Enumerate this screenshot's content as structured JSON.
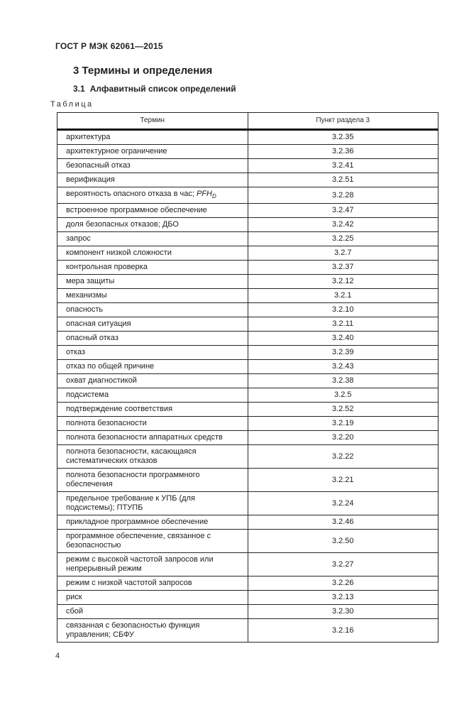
{
  "page": {
    "doc_code": "ГОСТ Р МЭК 62061—2015",
    "section_heading": "3 Термины и определения",
    "subsection_number": "3.1",
    "subsection_title": "Алфавитный список определений",
    "table_label": "Таблица",
    "page_number": "4"
  },
  "table": {
    "headers": {
      "term": "Термин",
      "clause": "Пункт раздела 3"
    },
    "rows": [
      {
        "term": [
          {
            "t": "архитектура"
          }
        ],
        "clause": "3.2.35"
      },
      {
        "term": [
          {
            "t": "архитектурное ограничение"
          }
        ],
        "clause": "3.2.36"
      },
      {
        "term": [
          {
            "t": "безопасный отказ"
          }
        ],
        "clause": "3.2.41"
      },
      {
        "term": [
          {
            "t": "верификация"
          }
        ],
        "clause": "3.2.51"
      },
      {
        "term": [
          {
            "t": "вероятность опасного отказа в час; "
          },
          {
            "t": "PFH",
            "s": "it"
          },
          {
            "t": "D",
            "s": "sub"
          }
        ],
        "clause": "3.2.28"
      },
      {
        "term": [
          {
            "t": "встроенное программное обеспечение"
          }
        ],
        "clause": "3.2.47"
      },
      {
        "term": [
          {
            "t": "доля безопасных отказов; ДБО"
          }
        ],
        "clause": "3.2.42"
      },
      {
        "term": [
          {
            "t": "запрос"
          }
        ],
        "clause": "3.2.25"
      },
      {
        "term": [
          {
            "t": "компонент низкой сложности"
          }
        ],
        "clause": "3.2.7"
      },
      {
        "term": [
          {
            "t": "контрольная проверка"
          }
        ],
        "clause": "3.2.37"
      },
      {
        "term": [
          {
            "t": "мера защиты"
          }
        ],
        "clause": "3.2.12"
      },
      {
        "term": [
          {
            "t": "механизмы"
          }
        ],
        "clause": "3.2.1"
      },
      {
        "term": [
          {
            "t": "опасность"
          }
        ],
        "clause": "3.2.10"
      },
      {
        "term": [
          {
            "t": "опасная ситуация"
          }
        ],
        "clause": "3.2.11"
      },
      {
        "term": [
          {
            "t": "опасный отказ"
          }
        ],
        "clause": "3.2.40"
      },
      {
        "term": [
          {
            "t": "отказ"
          }
        ],
        "clause": "3.2.39"
      },
      {
        "term": [
          {
            "t": "отказ по общей причине"
          }
        ],
        "clause": "3.2.43"
      },
      {
        "term": [
          {
            "t": "охват диагностикой"
          }
        ],
        "clause": "3.2.38"
      },
      {
        "term": [
          {
            "t": "подсистема"
          }
        ],
        "clause": "3.2.5"
      },
      {
        "term": [
          {
            "t": "подтверждение соответствия"
          }
        ],
        "clause": "3.2.52"
      },
      {
        "term": [
          {
            "t": "полнота безопасности"
          }
        ],
        "clause": "3.2.19"
      },
      {
        "term": [
          {
            "t": "полнота безопасности аппаратных средств"
          }
        ],
        "clause": "3.2.20"
      },
      {
        "term": [
          {
            "t": "полнота безопасности, касающаяся систематических отказов"
          }
        ],
        "clause": "3.2.22"
      },
      {
        "term": [
          {
            "t": "полнота безопасности программного обеспечения"
          }
        ],
        "clause": "3.2.21"
      },
      {
        "term": [
          {
            "t": "предельное требование к УПБ (для подсистемы); ПТУПБ"
          }
        ],
        "clause": "3.2.24"
      },
      {
        "term": [
          {
            "t": "прикладное программное обеспечение"
          }
        ],
        "clause": "3.2.46"
      },
      {
        "term": [
          {
            "t": "программное обеспечение, связанное с безопасностью"
          }
        ],
        "clause": "3.2.50"
      },
      {
        "term": [
          {
            "t": "режим с высокой частотой запросов или непрерывный режим"
          }
        ],
        "clause": "3.2.27"
      },
      {
        "term": [
          {
            "t": "режим с низкой частотой запросов"
          }
        ],
        "clause": "3.2.26"
      },
      {
        "term": [
          {
            "t": "риск"
          }
        ],
        "clause": "3.2.13"
      },
      {
        "term": [
          {
            "t": "сбой"
          }
        ],
        "clause": "3.2.30"
      },
      {
        "term": [
          {
            "t": "связанная с безопасностью функция управления; СБФУ"
          }
        ],
        "clause": "3.2.16"
      }
    ]
  }
}
